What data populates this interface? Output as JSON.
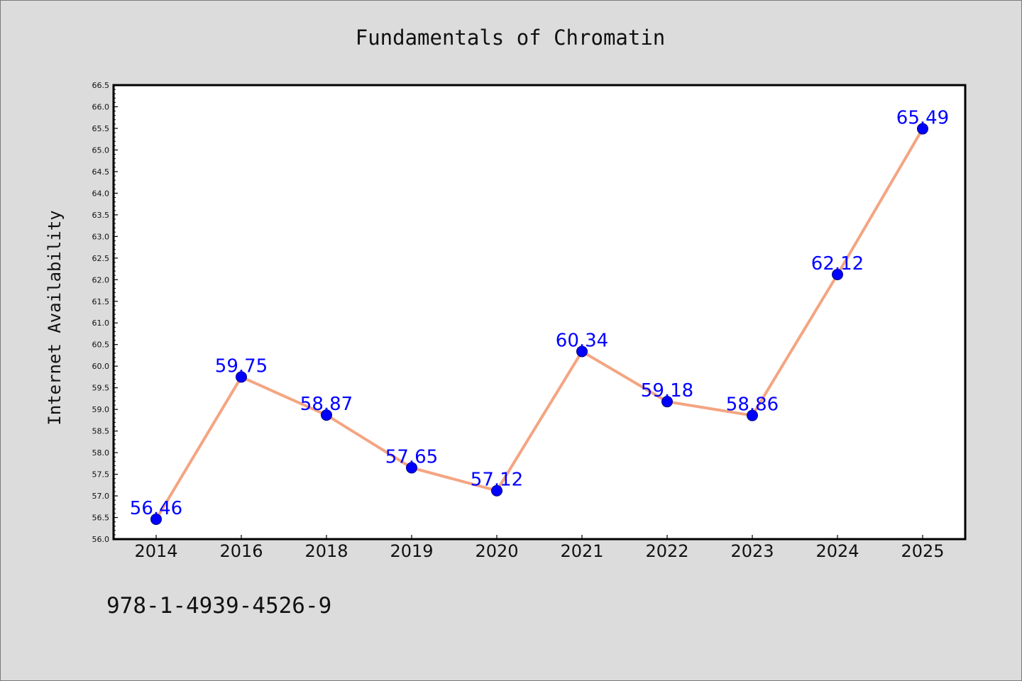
{
  "chart_data": {
    "type": "line",
    "title": "Fundamentals of Chromatin",
    "xlabel": "",
    "ylabel": "Internet Availability",
    "categories": [
      "2014",
      "2016",
      "2018",
      "2019",
      "2020",
      "2021",
      "2022",
      "2023",
      "2024",
      "2025"
    ],
    "series": [
      {
        "values": [
          56.46,
          59.75,
          58.87,
          57.65,
          57.12,
          60.34,
          59.18,
          58.86,
          62.12,
          65.49
        ],
        "data_labels": [
          "56.46",
          "59.75",
          "58.87",
          "57.65",
          "57.12",
          "60.34",
          "59.18",
          "58.86",
          "62.12",
          "65.49"
        ],
        "line_color": "#f4a582",
        "marker_color": "#0000ff"
      }
    ],
    "ylim": [
      56.0,
      66.5
    ],
    "ytick_step": 0.5,
    "grid": false,
    "legend": "none"
  },
  "footer": {
    "isbn": "978-1-4939-4526-9"
  }
}
